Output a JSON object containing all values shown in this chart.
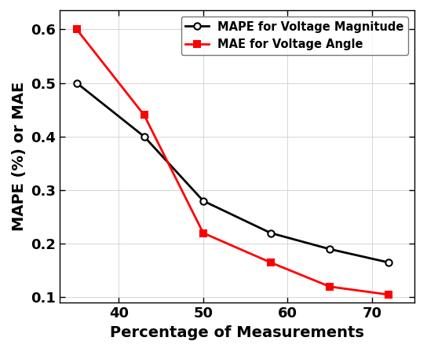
{
  "black_x": [
    35,
    43,
    50,
    58,
    65,
    72
  ],
  "black_y": [
    0.5,
    0.4,
    0.28,
    0.22,
    0.19,
    0.165
  ],
  "red_x": [
    35,
    43,
    50,
    58,
    65,
    72
  ],
  "red_y": [
    0.6,
    0.44,
    0.22,
    0.165,
    0.12,
    0.105
  ],
  "black_label": "MAPE for Voltage Magnitude",
  "red_label": "MAE for Voltage Angle",
  "xlabel": "Percentage of Measurements",
  "ylabel": "MAPE (%) or MAE",
  "xlim": [
    33,
    75
  ],
  "ylim": [
    0.09,
    0.635
  ],
  "yticks": [
    0.1,
    0.2,
    0.3,
    0.4,
    0.5,
    0.6
  ],
  "xticks": [
    40,
    50,
    60,
    70
  ],
  "black_color": "#000000",
  "red_color": "#ff0000",
  "bg_color": "#ffffff",
  "linewidth": 2.0,
  "marker_black": "o",
  "marker_red": "s",
  "markersize": 6,
  "legend_fontsize": 10.5,
  "label_fontsize": 14,
  "tick_fontsize": 13,
  "grid": true
}
